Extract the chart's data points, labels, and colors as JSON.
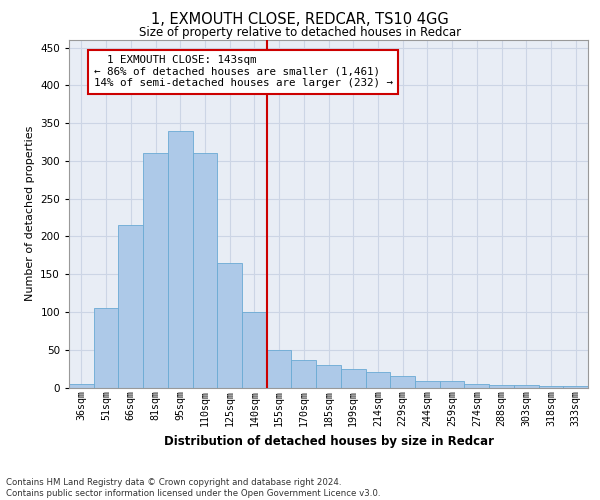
{
  "title": "1, EXMOUTH CLOSE, REDCAR, TS10 4GG",
  "subtitle": "Size of property relative to detached houses in Redcar",
  "xlabel": "Distribution of detached houses by size in Redcar",
  "ylabel": "Number of detached properties",
  "categories": [
    "36sqm",
    "51sqm",
    "66sqm",
    "81sqm",
    "95sqm",
    "110sqm",
    "125sqm",
    "140sqm",
    "155sqm",
    "170sqm",
    "185sqm",
    "199sqm",
    "214sqm",
    "229sqm",
    "244sqm",
    "259sqm",
    "274sqm",
    "288sqm",
    "303sqm",
    "318sqm",
    "333sqm"
  ],
  "values": [
    5,
    105,
    215,
    310,
    340,
    310,
    165,
    100,
    50,
    37,
    30,
    25,
    20,
    15,
    8,
    8,
    5,
    3,
    3,
    2,
    2
  ],
  "bar_color": "#adc9e8",
  "bar_edge_color": "#6aaad4",
  "annotation_text": "  1 EXMOUTH CLOSE: 143sqm\n← 86% of detached houses are smaller (1,461)\n14% of semi-detached houses are larger (232) →",
  "annotation_box_color": "#ffffff",
  "annotation_box_edge": "#cc0000",
  "vline_color": "#cc0000",
  "vline_x": 7.5,
  "grid_color": "#ccd5e5",
  "background_color": "#e8edf5",
  "ylim": [
    0,
    460
  ],
  "yticks": [
    0,
    50,
    100,
    150,
    200,
    250,
    300,
    350,
    400,
    450
  ],
  "footer_line1": "Contains HM Land Registry data © Crown copyright and database right 2024.",
  "footer_line2": "Contains public sector information licensed under the Open Government Licence v3.0."
}
